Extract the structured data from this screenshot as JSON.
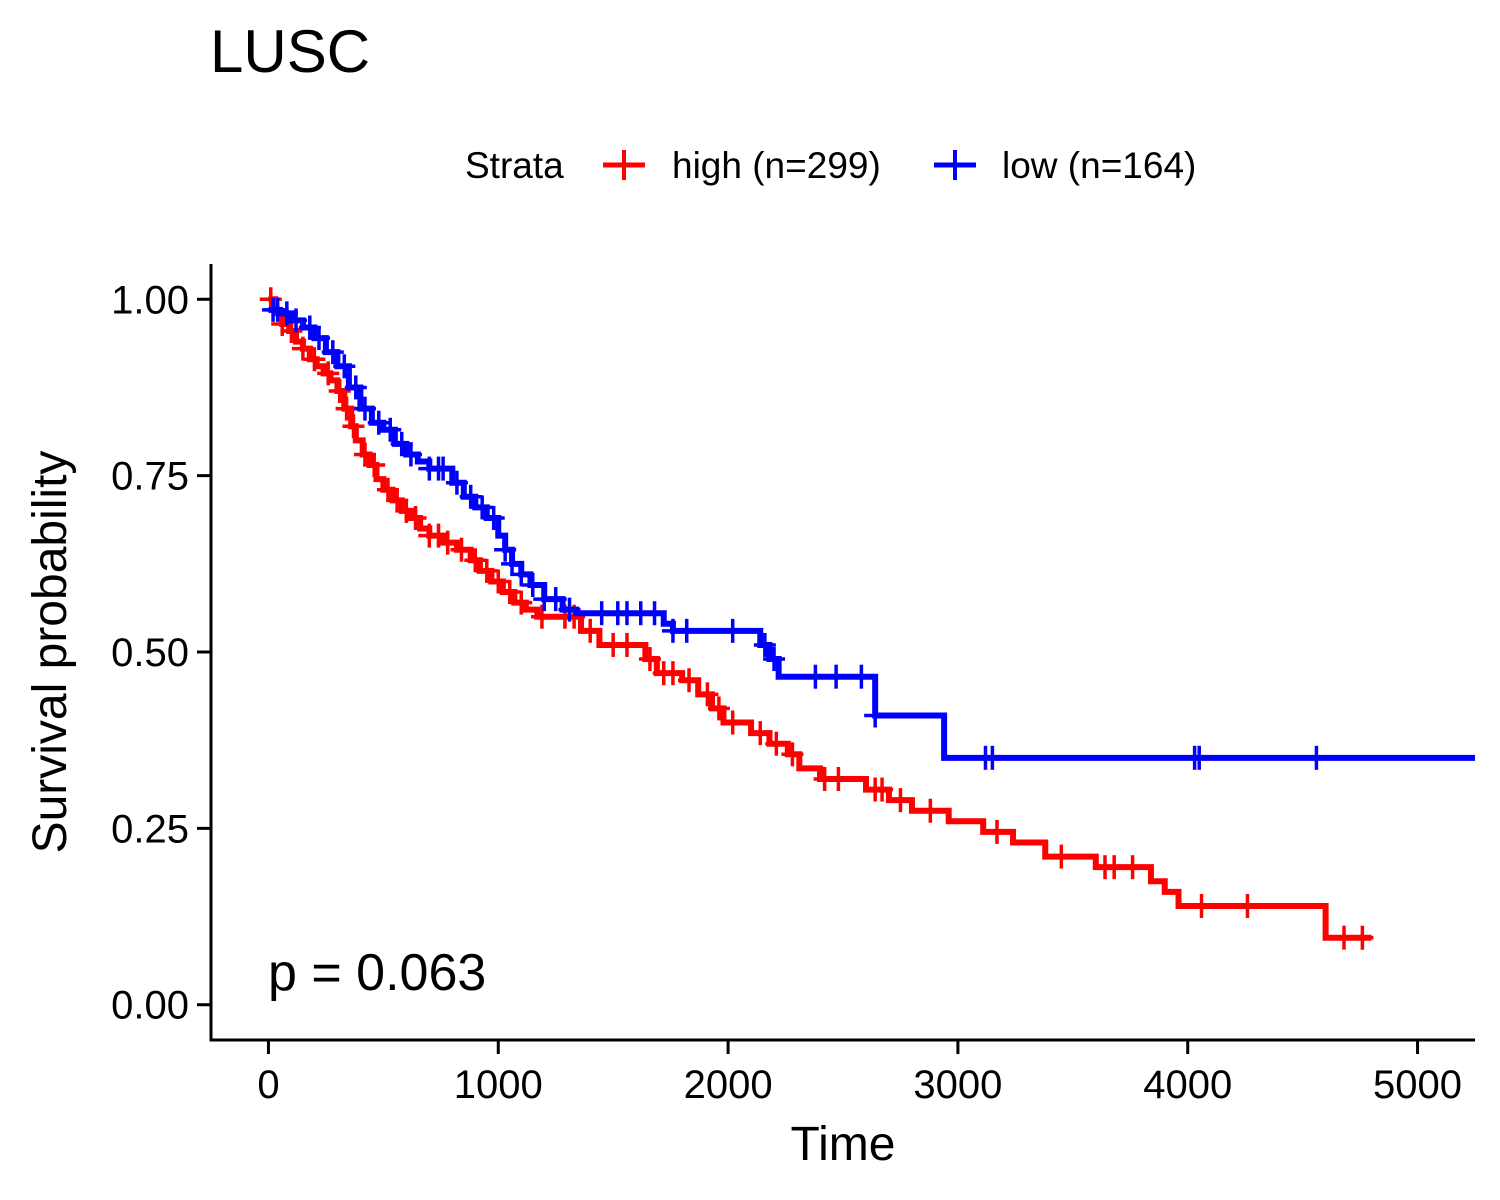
{
  "chart_data": {
    "type": "line",
    "title": "LUSC",
    "xlabel": "Time",
    "ylabel": "Survival probability",
    "xlim": [
      -250,
      5250
    ],
    "ylim": [
      -0.05,
      1.05
    ],
    "x_ticks": [
      0,
      1000,
      2000,
      3000,
      4000,
      5000
    ],
    "x_tick_labels": [
      "0",
      "1000",
      "2000",
      "3000",
      "4000",
      "5000"
    ],
    "y_ticks": [
      0,
      0.25,
      0.5,
      0.75,
      1.0
    ],
    "y_tick_labels": [
      "0.00",
      "0.25",
      "0.50",
      "0.75",
      "1.00"
    ],
    "grid": false,
    "legend": {
      "title": "Strata",
      "position": "top",
      "entries": [
        "high (n=299)",
        "low (n=164)"
      ]
    },
    "annotation": "p = 0.063",
    "series": [
      {
        "name": "high (n=299)",
        "color": "#ff0000",
        "steps": [
          [
            0,
            1.0
          ],
          [
            30,
            0.98
          ],
          [
            60,
            0.965
          ],
          [
            90,
            0.955
          ],
          [
            120,
            0.94
          ],
          [
            150,
            0.93
          ],
          [
            180,
            0.915
          ],
          [
            210,
            0.905
          ],
          [
            240,
            0.895
          ],
          [
            270,
            0.885
          ],
          [
            300,
            0.87
          ],
          [
            330,
            0.845
          ],
          [
            360,
            0.82
          ],
          [
            380,
            0.8
          ],
          [
            410,
            0.78
          ],
          [
            440,
            0.765
          ],
          [
            470,
            0.745
          ],
          [
            500,
            0.73
          ],
          [
            540,
            0.715
          ],
          [
            580,
            0.7
          ],
          [
            620,
            0.69
          ],
          [
            660,
            0.675
          ],
          [
            700,
            0.665
          ],
          [
            760,
            0.655
          ],
          [
            820,
            0.645
          ],
          [
            880,
            0.63
          ],
          [
            920,
            0.615
          ],
          [
            970,
            0.6
          ],
          [
            1020,
            0.585
          ],
          [
            1070,
            0.57
          ],
          [
            1120,
            0.56
          ],
          [
            1170,
            0.55
          ],
          [
            1360,
            0.53
          ],
          [
            1440,
            0.51
          ],
          [
            1640,
            0.49
          ],
          [
            1690,
            0.47
          ],
          [
            1800,
            0.46
          ],
          [
            1870,
            0.44
          ],
          [
            1930,
            0.42
          ],
          [
            1980,
            0.4
          ],
          [
            2100,
            0.385
          ],
          [
            2180,
            0.37
          ],
          [
            2260,
            0.355
          ],
          [
            2310,
            0.335
          ],
          [
            2400,
            0.32
          ],
          [
            2600,
            0.305
          ],
          [
            2700,
            0.29
          ],
          [
            2800,
            0.275
          ],
          [
            2960,
            0.26
          ],
          [
            3110,
            0.245
          ],
          [
            3240,
            0.23
          ],
          [
            3380,
            0.21
          ],
          [
            3600,
            0.195
          ],
          [
            3840,
            0.175
          ],
          [
            3900,
            0.16
          ],
          [
            3960,
            0.14
          ],
          [
            4600,
            0.095
          ],
          [
            4800,
            0.095
          ]
        ],
        "censor_times": [
          10,
          60,
          100,
          150,
          200,
          260,
          310,
          340,
          370,
          420,
          460,
          520,
          560,
          600,
          640,
          700,
          740,
          780,
          840,
          900,
          950,
          1000,
          1050,
          1100,
          1190,
          1290,
          1330,
          1400,
          1500,
          1560,
          1660,
          1720,
          1760,
          1830,
          1910,
          1960,
          2020,
          2140,
          2210,
          2280,
          2420,
          2480,
          2640,
          2670,
          2750,
          2880,
          3170,
          3450,
          3640,
          3680,
          3760,
          4060,
          4260,
          4680,
          4760
        ]
      },
      {
        "name": "low (n=164)",
        "color": "#0000ff",
        "steps": [
          [
            0,
            0.985
          ],
          [
            50,
            0.98
          ],
          [
            100,
            0.97
          ],
          [
            150,
            0.96
          ],
          [
            200,
            0.945
          ],
          [
            250,
            0.925
          ],
          [
            300,
            0.905
          ],
          [
            350,
            0.875
          ],
          [
            400,
            0.845
          ],
          [
            450,
            0.825
          ],
          [
            500,
            0.815
          ],
          [
            550,
            0.795
          ],
          [
            600,
            0.78
          ],
          [
            650,
            0.77
          ],
          [
            700,
            0.76
          ],
          [
            800,
            0.74
          ],
          [
            850,
            0.72
          ],
          [
            900,
            0.705
          ],
          [
            950,
            0.69
          ],
          [
            1000,
            0.665
          ],
          [
            1030,
            0.645
          ],
          [
            1060,
            0.625
          ],
          [
            1100,
            0.61
          ],
          [
            1140,
            0.595
          ],
          [
            1200,
            0.575
          ],
          [
            1280,
            0.56
          ],
          [
            1340,
            0.555
          ],
          [
            1720,
            0.54
          ],
          [
            1760,
            0.53
          ],
          [
            2140,
            0.51
          ],
          [
            2180,
            0.49
          ],
          [
            2220,
            0.465
          ],
          [
            2640,
            0.41
          ],
          [
            2940,
            0.35
          ],
          [
            5250,
            0.35
          ]
        ],
        "censor_times": [
          20,
          40,
          80,
          120,
          180,
          220,
          280,
          330,
          380,
          420,
          480,
          530,
          580,
          620,
          700,
          740,
          760,
          820,
          880,
          930,
          980,
          1030,
          1060,
          1100,
          1150,
          1200,
          1250,
          1310,
          1450,
          1520,
          1560,
          1620,
          1680,
          1760,
          1820,
          2020,
          2160,
          2200,
          2380,
          2470,
          2580,
          2640,
          3120,
          3150,
          4030,
          4050,
          4560
        ]
      }
    ]
  }
}
